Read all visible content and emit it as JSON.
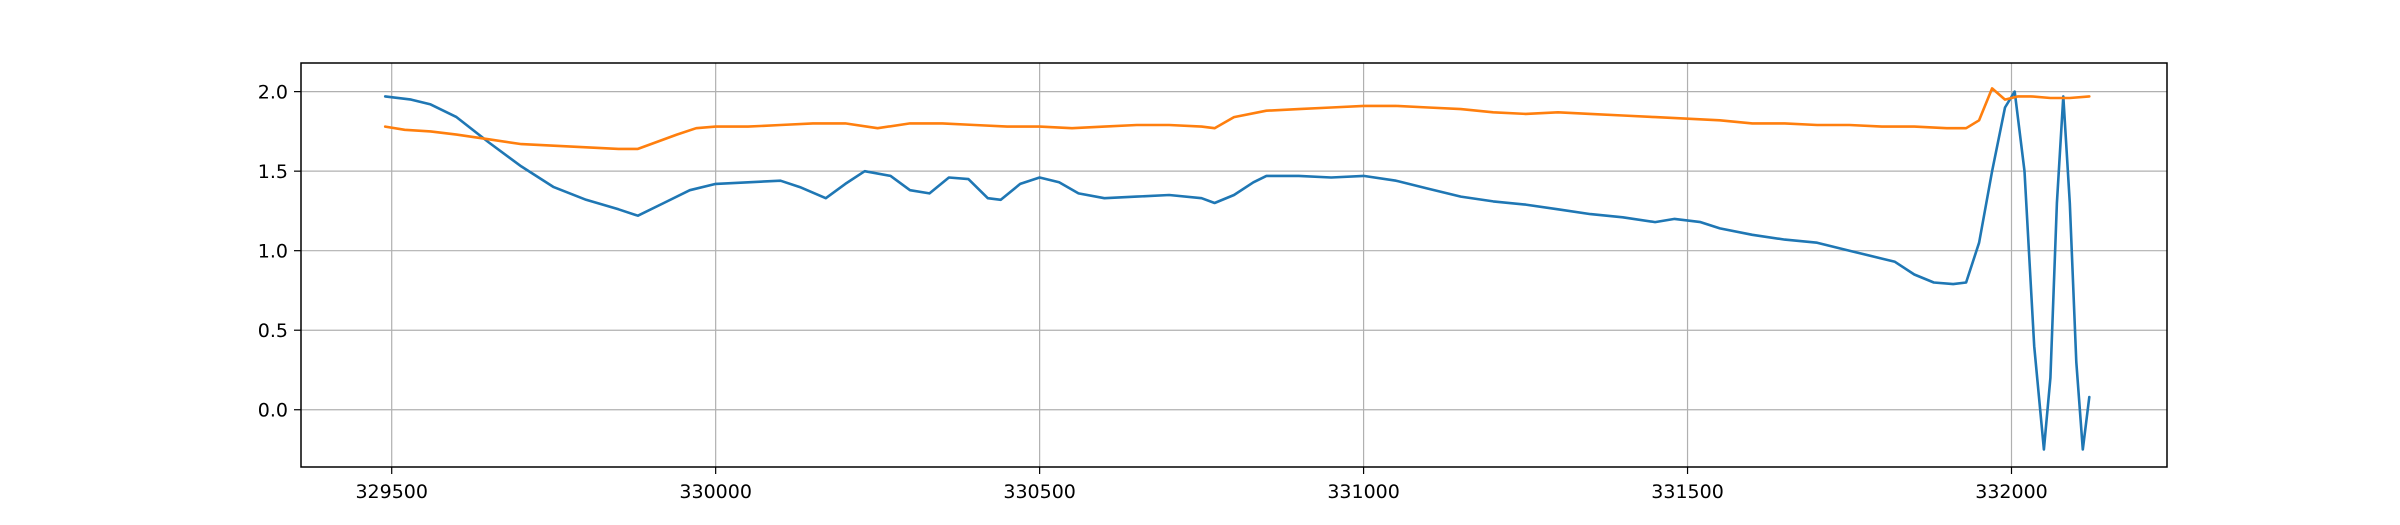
{
  "chart_data": {
    "type": "line",
    "title": "",
    "xlabel": "",
    "ylabel": "",
    "xlim": [
      329360,
      332240
    ],
    "ylim": [
      -0.36,
      2.18
    ],
    "grid": true,
    "legend": "none",
    "xticks": [
      329500,
      330000,
      330500,
      331000,
      331500,
      332000
    ],
    "xtick_labels": [
      "329500",
      "330000",
      "330500",
      "331000",
      "331500",
      "332000"
    ],
    "yticks": [
      0.0,
      0.5,
      1.0,
      1.5,
      2.0
    ],
    "ytick_labels": [
      "0.0",
      "0.5",
      "1.0",
      "1.5",
      "2.0"
    ],
    "series": [
      {
        "color": "#1f77b4",
        "x": [
          329490,
          329530,
          329560,
          329600,
          329650,
          329700,
          329750,
          329800,
          329850,
          329880,
          329920,
          329960,
          330000,
          330050,
          330100,
          330130,
          330170,
          330200,
          330230,
          330270,
          330300,
          330330,
          330360,
          330390,
          330420,
          330440,
          330470,
          330500,
          330530,
          330560,
          330600,
          330650,
          330700,
          330750,
          330770,
          330800,
          330830,
          330850,
          330900,
          330950,
          331000,
          331050,
          331100,
          331150,
          331200,
          331250,
          331300,
          331350,
          331400,
          331450,
          331480,
          331520,
          331550,
          331600,
          331650,
          331700,
          331750,
          331800,
          331820,
          331850,
          331880,
          331910,
          331930,
          331950,
          331970,
          331990,
          332005,
          332020,
          332035,
          332050,
          332060,
          332070,
          332080,
          332090,
          332100,
          332110,
          332120
        ],
        "y": [
          1.97,
          1.95,
          1.92,
          1.84,
          1.68,
          1.53,
          1.4,
          1.32,
          1.26,
          1.22,
          1.3,
          1.38,
          1.42,
          1.43,
          1.44,
          1.4,
          1.33,
          1.42,
          1.5,
          1.47,
          1.38,
          1.36,
          1.46,
          1.45,
          1.33,
          1.32,
          1.42,
          1.46,
          1.43,
          1.36,
          1.33,
          1.34,
          1.35,
          1.33,
          1.3,
          1.35,
          1.43,
          1.47,
          1.47,
          1.46,
          1.47,
          1.44,
          1.39,
          1.34,
          1.31,
          1.29,
          1.26,
          1.23,
          1.21,
          1.18,
          1.2,
          1.18,
          1.14,
          1.1,
          1.07,
          1.05,
          1.0,
          0.95,
          0.93,
          0.85,
          0.8,
          0.79,
          0.8,
          1.05,
          1.5,
          1.9,
          2.0,
          1.5,
          0.4,
          -0.25,
          0.2,
          1.3,
          1.97,
          1.3,
          0.3,
          -0.25,
          0.08
        ]
      },
      {
        "color": "#ff7f0e",
        "x": [
          329490,
          329520,
          329560,
          329600,
          329650,
          329700,
          329750,
          329800,
          329850,
          329880,
          329900,
          329940,
          329970,
          330000,
          330050,
          330100,
          330150,
          330200,
          330250,
          330300,
          330350,
          330400,
          330450,
          330500,
          330550,
          330600,
          330650,
          330700,
          330750,
          330770,
          330800,
          330850,
          330900,
          330950,
          331000,
          331050,
          331100,
          331150,
          331200,
          331250,
          331300,
          331350,
          331400,
          331450,
          331500,
          331550,
          331600,
          331650,
          331700,
          331750,
          331800,
          331850,
          331900,
          331930,
          331950,
          331970,
          331990,
          332010,
          332030,
          332060,
          332090,
          332120
        ],
        "y": [
          1.78,
          1.76,
          1.75,
          1.73,
          1.7,
          1.67,
          1.66,
          1.65,
          1.64,
          1.64,
          1.67,
          1.73,
          1.77,
          1.78,
          1.78,
          1.79,
          1.8,
          1.8,
          1.77,
          1.8,
          1.8,
          1.79,
          1.78,
          1.78,
          1.77,
          1.78,
          1.79,
          1.79,
          1.78,
          1.77,
          1.84,
          1.88,
          1.89,
          1.9,
          1.91,
          1.91,
          1.9,
          1.89,
          1.87,
          1.86,
          1.87,
          1.86,
          1.85,
          1.84,
          1.83,
          1.82,
          1.8,
          1.8,
          1.79,
          1.79,
          1.78,
          1.78,
          1.77,
          1.77,
          1.82,
          2.02,
          1.95,
          1.97,
          1.97,
          1.96,
          1.96,
          1.97
        ]
      }
    ]
  }
}
